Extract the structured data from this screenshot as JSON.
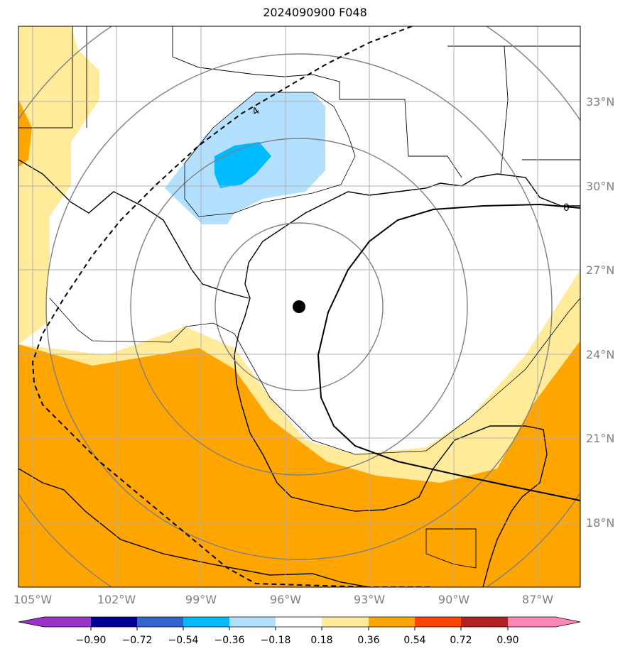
{
  "title": "2024090900 F048",
  "colors": {
    "c1": "#9933cc",
    "c2": "#000099",
    "c3": "#3366cc",
    "c4": "#00bbff",
    "c5": "#b3e0ff",
    "c6": "#ffffff",
    "c7": "#ffeb99",
    "c8": "#ffa500",
    "c9": "#ff4500",
    "c10": "#b22222",
    "c11": "#ff88b8",
    "land": "#000000",
    "grid": "#b0b0b0",
    "rings": "#808080"
  },
  "chart_data": {
    "type": "map",
    "lon_range": [
      -105.5,
      -85.5
    ],
    "lat_range": [
      15.5,
      35.5
    ],
    "lon_labels": [
      "105°W",
      "102°W",
      "99°W",
      "96°W",
      "93°W",
      "90°W",
      "87°W"
    ],
    "lat_labels": [
      "33°N",
      "30°N",
      "27°N",
      "24°N",
      "21°N",
      "18°N"
    ],
    "center": {
      "lon": -95.6,
      "lat": 25.6
    },
    "contour_labels": [
      "0",
      "4"
    ],
    "colorbar": {
      "ticks": [
        "−0.90",
        "−0.72",
        "−0.54",
        "−0.36",
        "−0.18",
        "0.18",
        "0.36",
        "0.54",
        "0.72",
        "0.90"
      ],
      "levels": [
        -0.9,
        -0.72,
        -0.54,
        -0.36,
        -0.18,
        0.18,
        0.36,
        0.54,
        0.72,
        0.9
      ],
      "extend": "both"
    }
  }
}
